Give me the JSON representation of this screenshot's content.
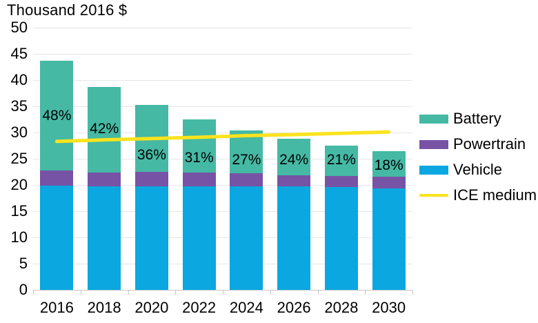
{
  "chart_data": {
    "type": "bar",
    "stacked": true,
    "title": "Thousand 2016 $",
    "ylabel": "",
    "xlabel": "",
    "ylim": [
      0,
      50
    ],
    "ytick_step": 5,
    "grid": "horizontal",
    "legend_position": "right",
    "categories": [
      "2016",
      "2018",
      "2020",
      "2022",
      "2024",
      "2026",
      "2028",
      "2030"
    ],
    "series": [
      {
        "name": "Vehicle",
        "color": "#0aa7e0",
        "values": [
          19.9,
          19.8,
          19.8,
          19.8,
          19.7,
          19.7,
          19.6,
          19.4
        ]
      },
      {
        "name": "Powertrain",
        "color": "#7753a6",
        "values": [
          2.8,
          2.6,
          2.7,
          2.6,
          2.5,
          2.2,
          2.1,
          2.2
        ]
      },
      {
        "name": "Battery",
        "color": "#45b9a4",
        "values": [
          21.0,
          16.3,
          12.7,
          10.1,
          8.2,
          6.9,
          5.8,
          4.8
        ]
      }
    ],
    "totals": [
      43.7,
      38.7,
      35.2,
      32.5,
      30.4,
      28.8,
      27.5,
      26.4
    ],
    "bar_labels": [
      "48%",
      "42%",
      "36%",
      "31%",
      "27%",
      "24%",
      "21%",
      "18%"
    ],
    "bar_label_y": [
      33.2,
      30.7,
      25.7,
      25.1,
      24.8,
      24.8,
      24.8,
      23.7
    ],
    "line_series": {
      "name": "ICE medium",
      "color": "#fbe31d",
      "values": [
        28.3,
        28.6,
        28.85,
        29.1,
        29.4,
        29.6,
        29.85,
        30.1
      ]
    },
    "legend": [
      {
        "label": "Battery",
        "color": "#45b9a4",
        "swatch": "rect"
      },
      {
        "label": "Powertrain",
        "color": "#7753a6",
        "swatch": "rect"
      },
      {
        "label": "Vehicle",
        "color": "#0aa7e0",
        "swatch": "rect"
      },
      {
        "label": "ICE medium",
        "color": "#fbe31d",
        "swatch": "line"
      }
    ]
  }
}
